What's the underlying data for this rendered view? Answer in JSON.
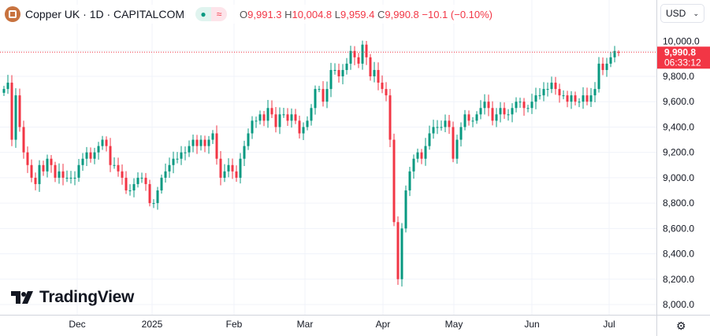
{
  "header": {
    "symbol": "Copper UK · 1D · CAPITALCOM",
    "status_open": "●",
    "status_delayed": "≈",
    "open_label": "O",
    "open": "9,991.3",
    "high_label": "H",
    "high": "10,004.8",
    "low_label": "L",
    "low": "9,959.4",
    "close_label": "C",
    "close": "9,990.8",
    "change": "−10.1 (−0.10%)"
  },
  "currency": {
    "value": "USD",
    "icon": "chevron-down-icon"
  },
  "last_price": {
    "value": "9,990.8",
    "countdown": "06:33:12",
    "color": "#f23645"
  },
  "brand": "TradingView",
  "settings_icon": "gear-icon",
  "chart_data": {
    "type": "candlestick",
    "title": "Copper UK · 1D · CAPITALCOM",
    "y_ticks": [
      "8,000.0",
      "8,200.0",
      "8,400.0",
      "8,600.0",
      "8,800.0",
      "9,000.0",
      "9,200.0",
      "9,400.0",
      "9,600.0",
      "9,800.0",
      "10,000.0"
    ],
    "ylim": [
      7950,
      10200
    ],
    "x_ticks": [
      "Dec",
      "2025",
      "Feb",
      "Mar",
      "Apr",
      "May",
      "Jun",
      "Jul"
    ],
    "grid": true,
    "up_color": "#089981",
    "down_color": "#f23645",
    "closes": [
      9700,
      9750,
      9300,
      9650,
      9400,
      9200,
      9100,
      9000,
      8950,
      9100,
      9050,
      9150,
      9100,
      9000,
      9050,
      9000,
      9000,
      9000,
      9000,
      9100,
      9150,
      9200,
      9150,
      9200,
      9250,
      9300,
      9250,
      9100,
      9100,
      9050,
      9000,
      8900,
      8900,
      8950,
      9000,
      9000,
      8950,
      8800,
      8800,
      8900,
      9000,
      9050,
      9100,
      9150,
      9150,
      9200,
      9200,
      9250,
      9300,
      9250,
      9300,
      9250,
      9300,
      9350,
      9150,
      9000,
      9050,
      9100,
      9050,
      9000,
      9150,
      9250,
      9350,
      9450,
      9450,
      9500,
      9450,
      9550,
      9500,
      9400,
      9500,
      9500,
      9450,
      9500,
      9450,
      9350,
      9400,
      9450,
      9550,
      9700,
      9700,
      9600,
      9700,
      9850,
      9850,
      9800,
      9850,
      9900,
      10000,
      9950,
      9900,
      10050,
      9950,
      9800,
      9850,
      9750,
      9700,
      9650,
      9300,
      8650,
      8200,
      8600,
      8900,
      9050,
      9150,
      9200,
      9150,
      9250,
      9350,
      9400,
      9400,
      9400,
      9450,
      9400,
      9150,
      9300,
      9400,
      9500,
      9450,
      9450,
      9500,
      9550,
      9600,
      9550,
      9450,
      9500,
      9550,
      9500,
      9500,
      9550,
      9600,
      9600,
      9550,
      9550,
      9600,
      9650,
      9650,
      9700,
      9700,
      9750,
      9700,
      9650,
      9650,
      9600,
      9650,
      9600,
      9600,
      9650,
      9600,
      9650,
      9700,
      9900,
      9850,
      9900,
      9950,
      10000,
      9990.8
    ],
    "last_candle": {
      "open": 9991.3,
      "high": 10004.8,
      "low": 9959.4,
      "close": 9990.8
    }
  }
}
